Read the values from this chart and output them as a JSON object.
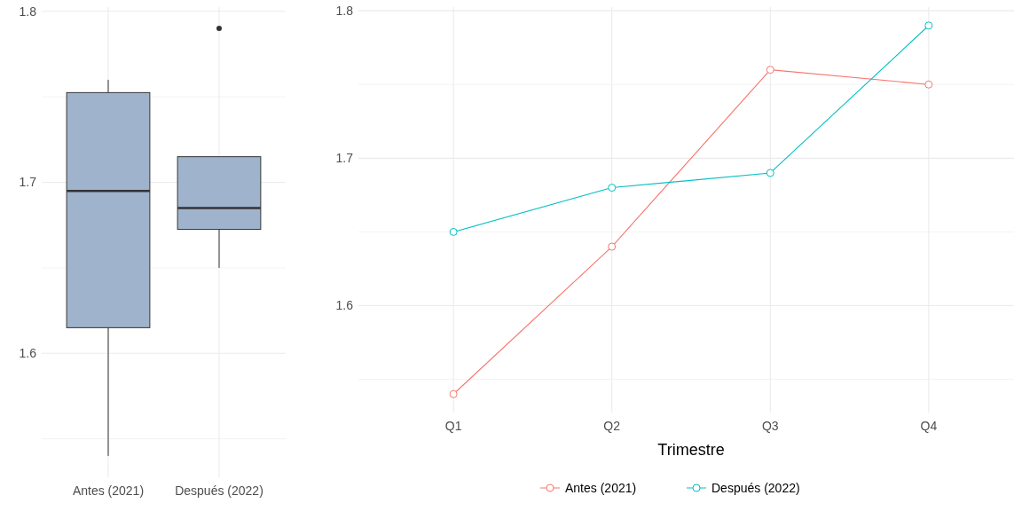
{
  "chart_data": [
    {
      "type": "box",
      "categories": [
        "Antes (2021)",
        "Después (2022)"
      ],
      "boxes": [
        {
          "low": 1.54,
          "q1": 1.615,
          "median": 1.695,
          "q3": 1.7525,
          "high": 1.76
        },
        {
          "low": 1.65,
          "q1": 1.6725,
          "median": 1.685,
          "q3": 1.715,
          "high": 1.715,
          "outliers": [
            1.79
          ]
        }
      ],
      "color": "#9fb3cc",
      "ylim": [
        1.5275,
        1.8025
      ],
      "yticks": [
        {
          "value": 1.55,
          "label": null
        },
        1.6,
        {
          "value": 1.65,
          "label": null
        },
        1.7,
        {
          "value": 1.75,
          "label": null
        },
        1.8
      ],
      "grid": true
    },
    {
      "type": "line",
      "categories": [
        "Q1",
        "Q2",
        "Q3",
        "Q4"
      ],
      "xlabel": "Trimestre",
      "series": [
        {
          "name": "Antes (2021)",
          "color": "#f8766d",
          "values": [
            1.54,
            1.64,
            1.76,
            1.75
          ]
        },
        {
          "name": "Después (2022)",
          "color": "#00bfc4",
          "values": [
            1.65,
            1.68,
            1.69,
            1.79
          ]
        }
      ],
      "ylim": [
        1.5275,
        1.8025
      ],
      "yticks": [
        {
          "value": 1.55,
          "label": null
        },
        1.6,
        {
          "value": 1.65,
          "label": null
        },
        1.7,
        {
          "value": 1.75,
          "label": null
        },
        1.8
      ],
      "grid": true,
      "legend": "bottom",
      "marker": "circle"
    }
  ]
}
